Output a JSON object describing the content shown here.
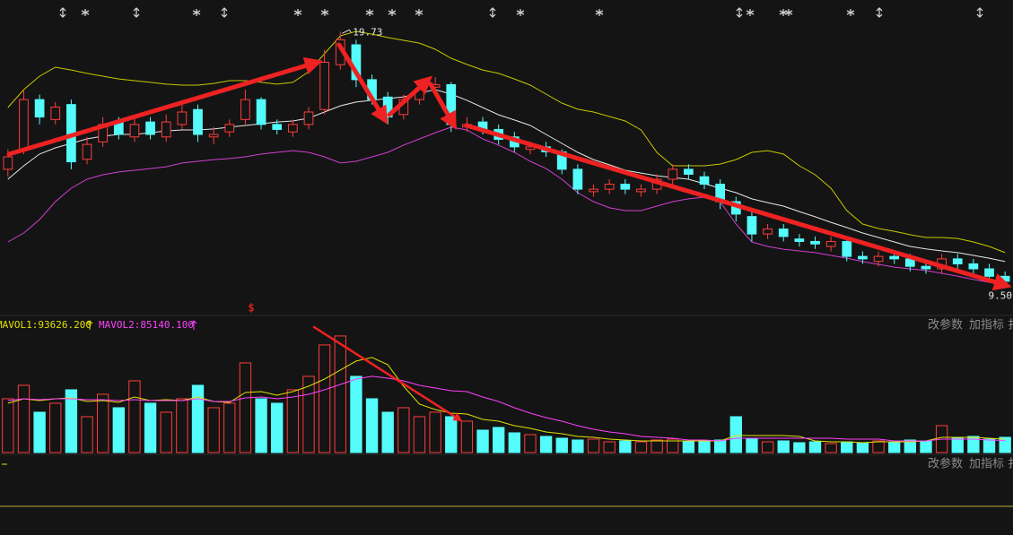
{
  "chart_data": {
    "type": "candlestick",
    "ylim": [
      8.4,
      21.0
    ],
    "colors": {
      "up": "#ff3c3c",
      "down": "#54fcfc"
    },
    "open": [
      14.2,
      15.0,
      17.0,
      16.2,
      16.8,
      14.6,
      15.3,
      16.1,
      15.5,
      16.1,
      15.5,
      16.0,
      16.6,
      15.5,
      15.7,
      16.2,
      17.0,
      16.0,
      15.7,
      16.0,
      16.6,
      18.4,
      19.2,
      17.8,
      17.1,
      16.4,
      17.0,
      17.5,
      17.6,
      15.9,
      16.1,
      15.8,
      15.5,
      15.0,
      15.1,
      14.9,
      14.2,
      13.3,
      13.4,
      13.6,
      13.3,
      13.4,
      13.8,
      14.2,
      13.9,
      13.6,
      12.9,
      12.3,
      11.6,
      11.8,
      11.4,
      11.3,
      11.1,
      11.3,
      10.7,
      10.5,
      10.7,
      10.6,
      10.3,
      10.2,
      10.6,
      10.4,
      10.2,
      9.9
    ],
    "high": [
      15.0,
      17.4,
      17.2,
      16.9,
      17.0,
      15.5,
      16.3,
      16.3,
      16.3,
      16.3,
      16.4,
      16.8,
      16.8,
      15.9,
      16.2,
      17.4,
      17.1,
      16.2,
      16.2,
      16.7,
      19.0,
      19.73,
      19.4,
      18.0,
      17.3,
      17.2,
      17.6,
      17.9,
      17.7,
      16.3,
      16.3,
      16.0,
      15.7,
      15.3,
      15.3,
      15.0,
      14.4,
      13.6,
      13.8,
      13.8,
      13.6,
      14.0,
      14.4,
      14.4,
      14.1,
      13.8,
      13.1,
      12.5,
      12.0,
      12.0,
      11.6,
      11.5,
      11.5,
      11.4,
      10.9,
      10.9,
      10.9,
      10.8,
      10.5,
      10.8,
      10.8,
      10.6,
      10.4,
      10.1
    ],
    "low": [
      13.9,
      14.8,
      16.0,
      16.0,
      14.2,
      14.4,
      15.1,
      15.4,
      15.3,
      15.4,
      15.3,
      15.8,
      15.3,
      15.2,
      15.5,
      16.0,
      15.8,
      15.6,
      15.5,
      15.8,
      16.4,
      18.2,
      17.5,
      16.8,
      16.0,
      16.2,
      16.8,
      17.3,
      15.7,
      15.7,
      15.6,
      15.2,
      14.9,
      14.8,
      14.7,
      14.0,
      13.2,
      13.1,
      13.2,
      13.2,
      13.1,
      13.2,
      13.6,
      13.8,
      13.4,
      12.6,
      12.1,
      11.3,
      11.4,
      11.3,
      11.1,
      11.0,
      10.9,
      10.5,
      10.4,
      10.3,
      10.4,
      10.1,
      10.0,
      10.0,
      10.2,
      10.0,
      9.7,
      9.5
    ],
    "close": [
      14.7,
      17.0,
      16.3,
      16.7,
      14.5,
      15.2,
      16.0,
      15.6,
      16.0,
      15.6,
      16.1,
      16.5,
      15.6,
      15.6,
      16.0,
      17.0,
      16.0,
      15.8,
      16.0,
      16.5,
      18.5,
      19.4,
      17.8,
      17.0,
      16.3,
      17.0,
      17.4,
      17.6,
      16.0,
      16.0,
      15.8,
      15.4,
      15.1,
      15.1,
      14.9,
      14.2,
      13.4,
      13.4,
      13.6,
      13.4,
      13.4,
      13.8,
      14.2,
      14.0,
      13.6,
      12.9,
      12.4,
      11.6,
      11.8,
      11.5,
      11.3,
      11.2,
      11.3,
      10.7,
      10.6,
      10.7,
      10.6,
      10.3,
      10.2,
      10.6,
      10.4,
      10.2,
      9.9,
      9.7
    ],
    "bands": [
      {
        "color": "#c8c800",
        "values": [
          16.68,
          17.4,
          17.94,
          18.3,
          18.19,
          18.05,
          17.94,
          17.83,
          17.76,
          17.69,
          17.62,
          17.58,
          17.58,
          17.65,
          17.76,
          17.76,
          17.69,
          17.62,
          17.69,
          18.12,
          18.84,
          19.56,
          19.74,
          19.63,
          19.49,
          19.38,
          19.27,
          19.02,
          18.66,
          18.41,
          18.19,
          18.05,
          17.83,
          17.58,
          17.22,
          16.86,
          16.61,
          16.5,
          16.32,
          16.14,
          15.78,
          14.88,
          14.34,
          14.34,
          14.34,
          14.41,
          14.59,
          14.88,
          14.95,
          14.81,
          14.34,
          13.98,
          13.44,
          12.54,
          12.0,
          11.82,
          11.71,
          11.57,
          11.46,
          11.46,
          11.42,
          11.28,
          11.1,
          10.85
        ]
      },
      {
        "color": "#e6e6e6",
        "values": [
          13.8,
          14.34,
          14.81,
          15.06,
          15.24,
          15.42,
          15.53,
          15.6,
          15.6,
          15.67,
          15.74,
          15.78,
          15.78,
          15.82,
          15.89,
          15.96,
          16.03,
          16.1,
          16.14,
          16.25,
          16.5,
          16.75,
          16.9,
          16.97,
          17.04,
          17.11,
          17.26,
          17.4,
          17.22,
          16.97,
          16.68,
          16.39,
          16.18,
          15.96,
          15.6,
          15.24,
          14.88,
          14.59,
          14.38,
          14.16,
          14.05,
          13.94,
          13.87,
          13.8,
          13.62,
          13.44,
          13.26,
          13.01,
          12.86,
          12.72,
          12.5,
          12.29,
          12.07,
          11.86,
          11.64,
          11.46,
          11.28,
          11.1,
          11.0,
          10.92,
          10.85,
          10.74,
          10.63,
          10.49
        ]
      },
      {
        "color": "#d040d0",
        "values": [
          11.28,
          11.64,
          12.18,
          12.9,
          13.44,
          13.8,
          13.98,
          14.09,
          14.16,
          14.23,
          14.3,
          14.45,
          14.52,
          14.59,
          14.63,
          14.7,
          14.81,
          14.88,
          14.95,
          14.88,
          14.7,
          14.45,
          14.52,
          14.7,
          14.88,
          15.17,
          15.42,
          15.67,
          15.89,
          15.78,
          15.42,
          15.17,
          14.88,
          14.52,
          14.23,
          13.8,
          13.26,
          12.9,
          12.65,
          12.54,
          12.54,
          12.72,
          12.9,
          13.01,
          13.08,
          12.9,
          12.0,
          11.28,
          11.1,
          10.99,
          10.92,
          10.85,
          10.74,
          10.63,
          10.49,
          10.38,
          10.27,
          10.2,
          10.13,
          10.02,
          9.91,
          9.77,
          9.66,
          9.55
        ]
      }
    ],
    "extreme_labels": [
      {
        "value": 19.73,
        "label": "19.73"
      },
      {
        "value": 9.5,
        "label": "9.50"
      }
    ],
    "vol_ylim": [
      0,
      850000
    ],
    "volume": [
      378000,
      472500,
      283500,
      346500,
      441000,
      252000,
      409500,
      315000,
      504000,
      346500,
      283500,
      378000,
      472500,
      315000,
      346500,
      630000,
      378000,
      346500,
      441000,
      535500,
      756000,
      819000,
      535500,
      378000,
      283500,
      315000,
      252000,
      283500,
      252000,
      220500,
      157500,
      176400,
      138600,
      126000,
      113400,
      100800,
      88200,
      94500,
      75600,
      81900,
      75600,
      88200,
      94500,
      75600,
      81900,
      88200,
      252000,
      100800,
      75600,
      81900,
      69300,
      75600,
      63000,
      75600,
      69300,
      81900,
      75600,
      88200,
      81900,
      189000,
      100800,
      113400,
      94500,
      107100
    ],
    "volume_lines": [
      {
        "color": "#e0e000",
        "values": [
          346500,
          378000,
          365400,
          378000,
          384300,
          359100,
          365400,
          352800,
          390600,
          365400,
          371700,
          365400,
          390600,
          359100,
          352800,
          422100,
          428400,
          403200,
          428400,
          466200,
          516600,
          579600,
          642600,
          667800,
          617400,
          466200,
          340200,
          302400,
          277200,
          270900,
          233100,
          220500,
          189000,
          170100,
          144900,
          132300,
          113400,
          107100,
          94500,
          88200,
          81900,
          81900,
          81900,
          81900,
          81900,
          81900,
          119700,
          119700,
          119700,
          119700,
          113400,
          81900,
          75600,
          75600,
          69300,
          75600,
          75600,
          75600,
          81900,
          107100,
          107100,
          107100,
          100800,
          93626.2
        ]
      },
      {
        "color": "#ff40ff",
        "values": [
          365400,
          378000,
          371700,
          378000,
          378000,
          371700,
          371700,
          365400,
          371700,
          365400,
          365400,
          365400,
          378000,
          359100,
          359100,
          384300,
          390600,
          378000,
          390600,
          409500,
          441000,
          478800,
          516600,
          535500,
          522900,
          504000,
          472500,
          453600,
          434700,
          428400,
          390600,
          359100,
          315000,
          277200,
          245700,
          220500,
          189000,
          163800,
          144900,
          132300,
          113400,
          107100,
          100800,
          88200,
          88200,
          81900,
          100800,
          100800,
          100800,
          100800,
          100800,
          100800,
          100800,
          94500,
          94500,
          94500,
          81900,
          81900,
          81900,
          94500,
          94500,
          94500,
          88200,
          85140.1
        ]
      }
    ]
  },
  "ui": {
    "signal_marker": "$",
    "vol_legend": [
      "MAVOL1:93626.200",
      "MAVOL2:85140.100"
    ],
    "buttons": [
      "改参数",
      "加指标",
      "扌"
    ]
  }
}
